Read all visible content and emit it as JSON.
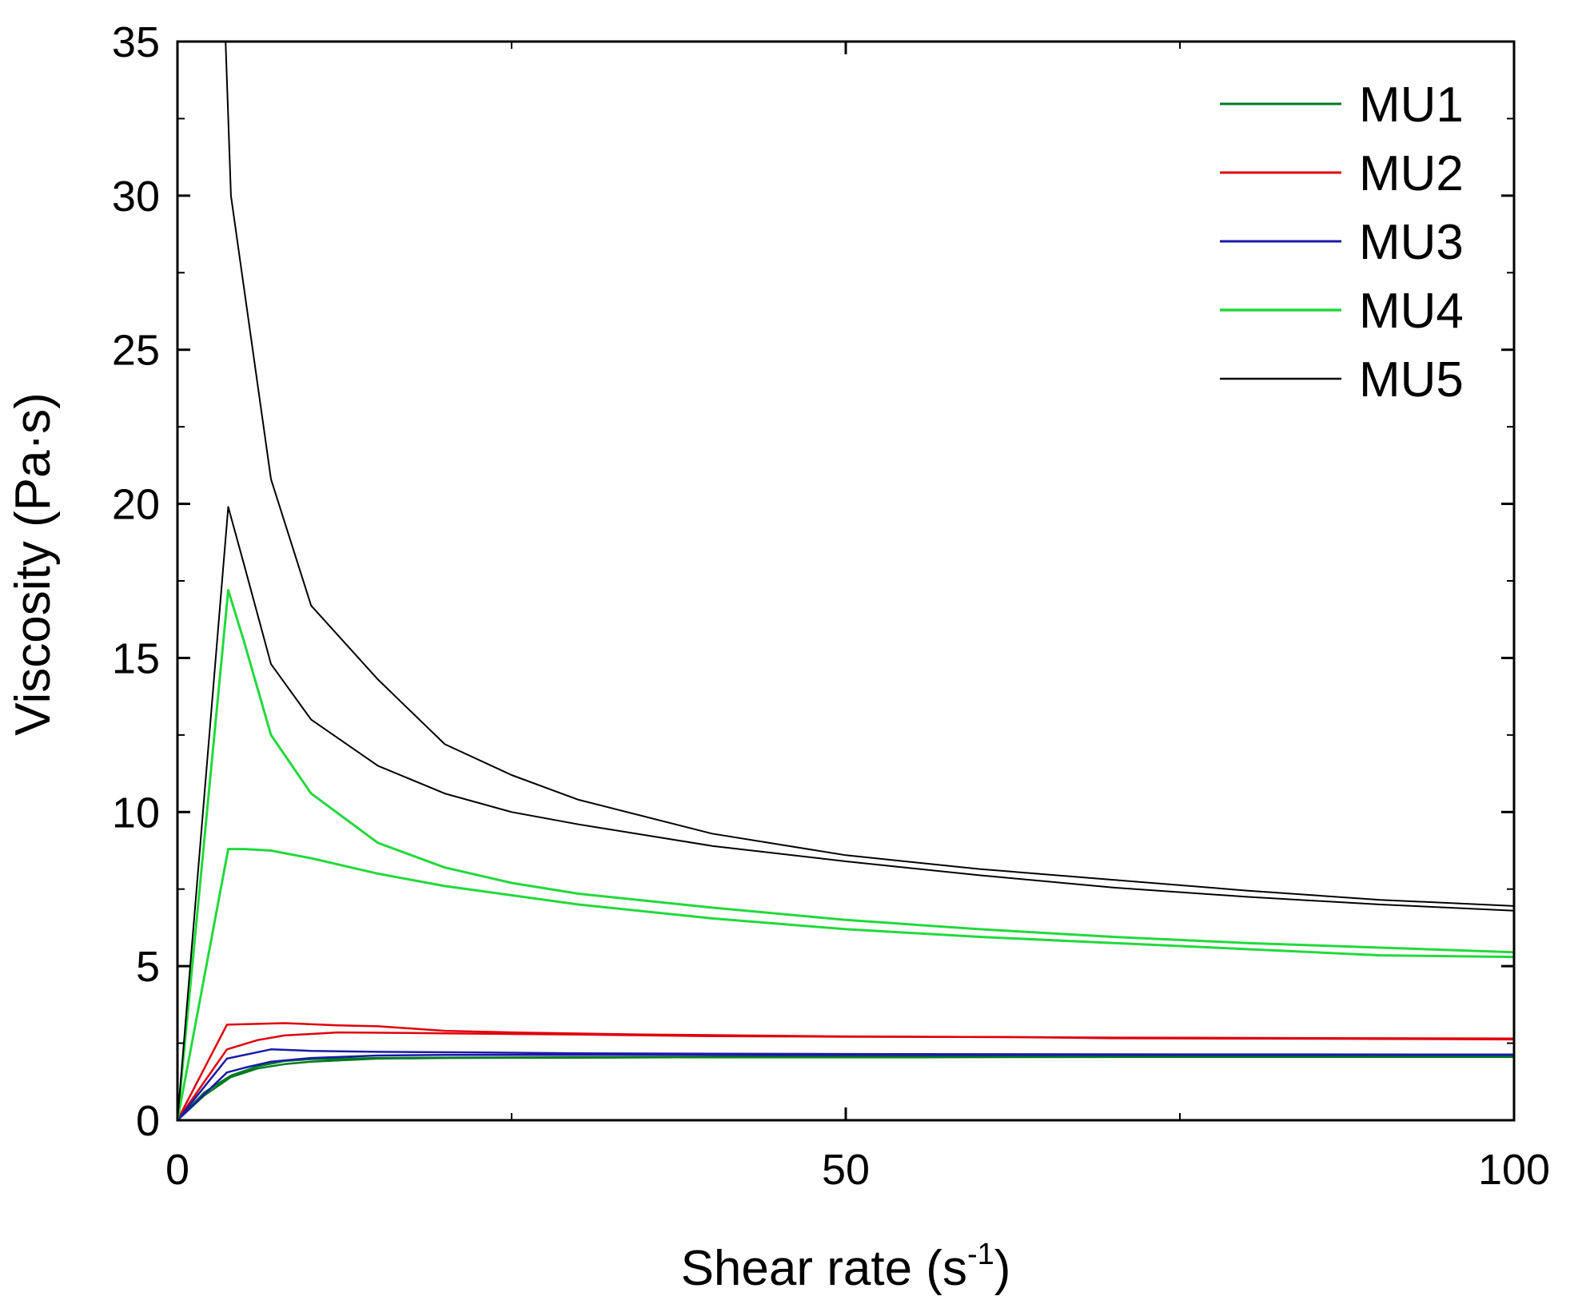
{
  "chart_data": {
    "type": "line",
    "title": "",
    "xlabel": "Shear rate (s",
    "xlabel_sup": "-1",
    "xlabel_end": ")",
    "ylabel": "Viscosity (Pa·s)",
    "xlim": [
      0,
      100
    ],
    "ylim": [
      0,
      35
    ],
    "x_ticks": [
      0,
      50,
      100
    ],
    "x_tick_labels": [
      "0",
      "50",
      "100"
    ],
    "y_ticks": [
      0,
      5,
      10,
      15,
      20,
      25,
      30,
      35
    ],
    "y_tick_labels": [
      "0",
      "5",
      "10",
      "15",
      "20",
      "25",
      "30",
      "35"
    ],
    "grid": false,
    "legend_position": "top-right",
    "series": [
      {
        "name": "MU1",
        "color": "#007a20",
        "width": 2.5,
        "up": [
          [
            0,
            0
          ],
          [
            2,
            0.9
          ],
          [
            4,
            1.45
          ],
          [
            6,
            1.75
          ],
          [
            8,
            1.92
          ],
          [
            10,
            1.98
          ],
          [
            15,
            2.02
          ],
          [
            20,
            2.03
          ],
          [
            30,
            2.04
          ],
          [
            50,
            2.06
          ],
          [
            70,
            2.06
          ],
          [
            100,
            2.06
          ]
        ],
        "down": [
          [
            100,
            2.05
          ],
          [
            90,
            2.05
          ],
          [
            70,
            2.05
          ],
          [
            50,
            2.04
          ],
          [
            37,
            2.04
          ],
          [
            30,
            2.03
          ],
          [
            20,
            2.02
          ],
          [
            15,
            2.0
          ],
          [
            10,
            1.9
          ],
          [
            8,
            1.82
          ],
          [
            6,
            1.68
          ],
          [
            4,
            1.4
          ],
          [
            2,
            0.8
          ],
          [
            0,
            0
          ]
        ]
      },
      {
        "name": "MU2",
        "color": "#e0000a",
        "width": 2.5,
        "up": [
          [
            0,
            0
          ],
          [
            3.7,
            3.1
          ],
          [
            8,
            3.15
          ],
          [
            12,
            3.08
          ],
          [
            15,
            3.05
          ],
          [
            20,
            2.9
          ],
          [
            25,
            2.85
          ],
          [
            35,
            2.78
          ],
          [
            50,
            2.72
          ],
          [
            70,
            2.68
          ],
          [
            100,
            2.65
          ]
        ],
        "down": [
          [
            100,
            2.62
          ],
          [
            90,
            2.64
          ],
          [
            70,
            2.66
          ],
          [
            62,
            2.7
          ],
          [
            50,
            2.71
          ],
          [
            40,
            2.73
          ],
          [
            30,
            2.78
          ],
          [
            20,
            2.82
          ],
          [
            12,
            2.85
          ],
          [
            8,
            2.75
          ],
          [
            6,
            2.6
          ],
          [
            3.7,
            2.3
          ],
          [
            0,
            0
          ]
        ]
      },
      {
        "name": "MU3",
        "color": "#1a1aa8",
        "width": 2.5,
        "up": [
          [
            0,
            0
          ],
          [
            3.7,
            2.0
          ],
          [
            7,
            2.3
          ],
          [
            10,
            2.25
          ],
          [
            15,
            2.22
          ],
          [
            22,
            2.2
          ],
          [
            30,
            2.17
          ],
          [
            50,
            2.15
          ],
          [
            70,
            2.14
          ],
          [
            100,
            2.13
          ]
        ],
        "down": [
          [
            100,
            2.12
          ],
          [
            90,
            2.12
          ],
          [
            70,
            2.12
          ],
          [
            50,
            2.12
          ],
          [
            30,
            2.12
          ],
          [
            20,
            2.12
          ],
          [
            15,
            2.1
          ],
          [
            10,
            2.02
          ],
          [
            7,
            1.9
          ],
          [
            5,
            1.7
          ],
          [
            3.7,
            1.55
          ],
          [
            0,
            0
          ]
        ]
      },
      {
        "name": "MU4",
        "color": "#22d93c",
        "width": 3,
        "up": [
          [
            0,
            0
          ],
          [
            3.8,
            17.2
          ],
          [
            5,
            15.5
          ],
          [
            7,
            12.5
          ],
          [
            10,
            10.6
          ],
          [
            15,
            9.0
          ],
          [
            20,
            8.2
          ],
          [
            25,
            7.7
          ],
          [
            30,
            7.35
          ],
          [
            40,
            6.9
          ],
          [
            50,
            6.5
          ],
          [
            60,
            6.2
          ],
          [
            70,
            5.95
          ],
          [
            80,
            5.75
          ],
          [
            90,
            5.6
          ],
          [
            100,
            5.45
          ]
        ],
        "down": [
          [
            100,
            5.3
          ],
          [
            90,
            5.35
          ],
          [
            80,
            5.55
          ],
          [
            70,
            5.75
          ],
          [
            60,
            5.95
          ],
          [
            50,
            6.2
          ],
          [
            40,
            6.55
          ],
          [
            30,
            7.0
          ],
          [
            20,
            7.6
          ],
          [
            15,
            8.0
          ],
          [
            10,
            8.5
          ],
          [
            7,
            8.75
          ],
          [
            5,
            8.8
          ],
          [
            3.8,
            8.8
          ],
          [
            0,
            0
          ]
        ]
      },
      {
        "name": "MU5",
        "color": "#000000",
        "width": 2,
        "up": [
          [
            0,
            0
          ],
          [
            3.8,
            19.9
          ],
          [
            5,
            18.0
          ],
          [
            7,
            14.8
          ],
          [
            10,
            13.0
          ],
          [
            15,
            11.5
          ],
          [
            20,
            10.6
          ],
          [
            25,
            10.0
          ],
          [
            30,
            9.6
          ],
          [
            40,
            8.9
          ],
          [
            50,
            8.4
          ],
          [
            60,
            7.95
          ],
          [
            70,
            7.55
          ],
          [
            80,
            7.25
          ],
          [
            90,
            7.0
          ],
          [
            100,
            6.8
          ]
        ],
        "down": [
          [
            100,
            6.95
          ],
          [
            90,
            7.15
          ],
          [
            80,
            7.45
          ],
          [
            70,
            7.8
          ],
          [
            60,
            8.15
          ],
          [
            50,
            8.6
          ],
          [
            40,
            9.3
          ],
          [
            30,
            10.4
          ],
          [
            25,
            11.2
          ],
          [
            20,
            12.2
          ],
          [
            15,
            14.3
          ],
          [
            10,
            16.7
          ],
          [
            7,
            20.8
          ],
          [
            4,
            30.0
          ],
          [
            3.6,
            35
          ]
        ]
      }
    ]
  }
}
